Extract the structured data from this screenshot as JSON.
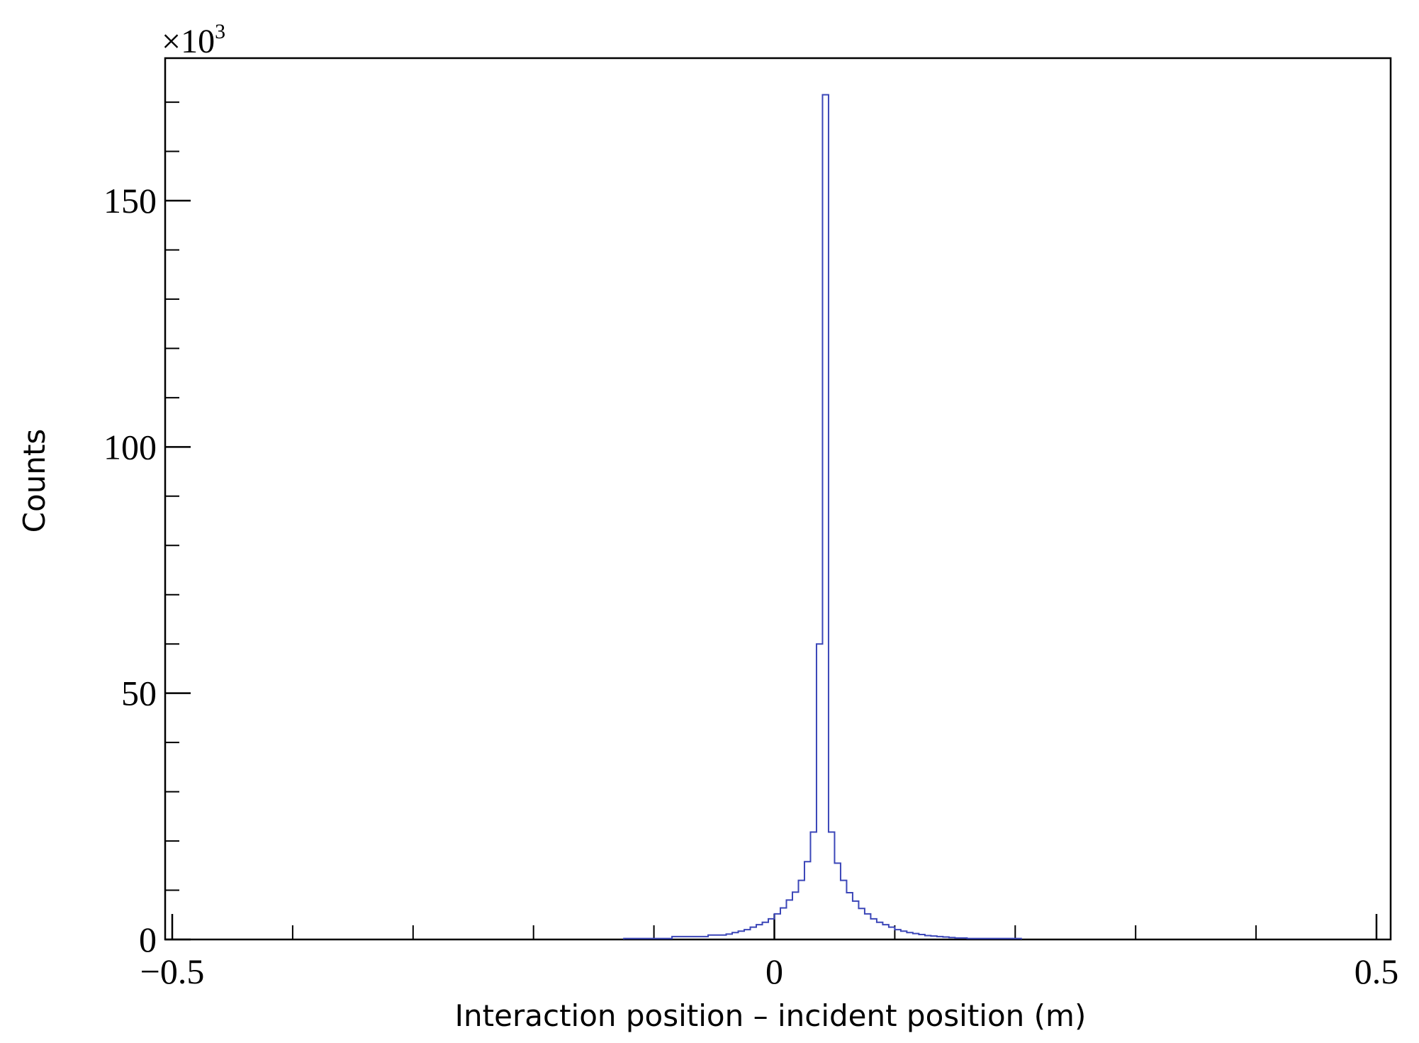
{
  "chart_data": {
    "type": "histogram",
    "xlabel": "Interaction position – incident position (m)",
    "ylabel": "Counts",
    "y_multiplier_label": "×10",
    "y_multiplier_exponent": "3",
    "xlim": [
      -0.5,
      0.5
    ],
    "ylim": [
      0,
      172
    ],
    "x_tick_values": [
      -0.5,
      0,
      0.5
    ],
    "x_tick_labels": [
      "−0.5",
      "0",
      "0.5"
    ],
    "x_minor_ticks": [
      -0.4,
      -0.3,
      -0.2,
      -0.1,
      0.1,
      0.2,
      0.3,
      0.4
    ],
    "y_tick_values": [
      0,
      50,
      100,
      150
    ],
    "y_tick_labels": [
      "0",
      "50",
      "100",
      "150"
    ],
    "y_minor_ticks": [
      10,
      20,
      30,
      40,
      60,
      70,
      80,
      90,
      110,
      120,
      130,
      140,
      160,
      170
    ],
    "line_color": "#3b46b8",
    "bin_width": 0.005,
    "bin_start": -0.125,
    "counts": [
      0.2,
      0.2,
      0.2,
      0.2,
      0.2,
      0.2,
      0.2,
      0.2,
      0.6,
      0.6,
      0.6,
      0.6,
      0.6,
      0.6,
      0.9,
      0.9,
      0.9,
      1.1,
      1.4,
      1.7,
      2.0,
      2.5,
      3.0,
      3.5,
      4.2,
      5.2,
      6.4,
      8.0,
      9.6,
      12.0,
      15.8,
      21.8,
      60.0,
      171.5,
      21.8,
      15.5,
      12.0,
      9.5,
      7.8,
      6.3,
      5.2,
      4.2,
      3.5,
      3.0,
      2.5,
      2.0,
      1.7,
      1.4,
      1.2,
      1.0,
      0.8,
      0.7,
      0.6,
      0.5,
      0.4,
      0.3,
      0.3,
      0.2,
      0.2,
      0.2,
      0.2,
      0.2,
      0.2,
      0.2,
      0.2,
      0.2
    ]
  }
}
